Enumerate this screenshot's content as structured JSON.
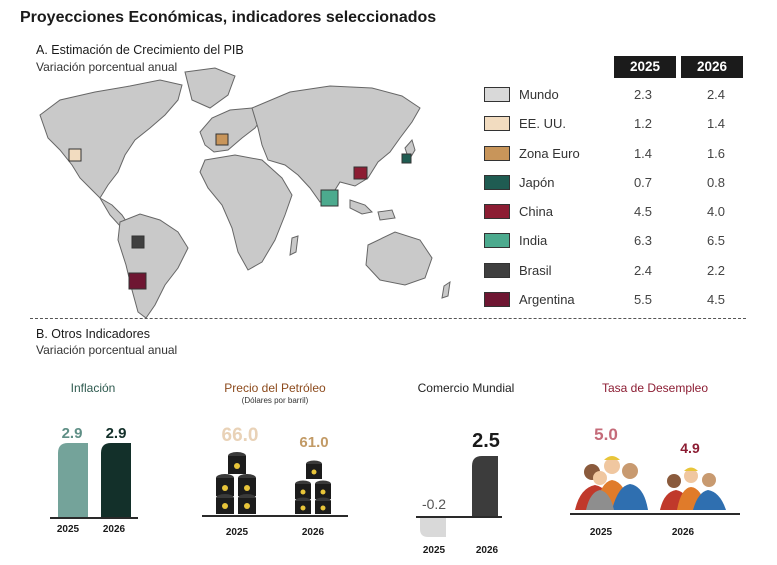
{
  "title": "Proyecciones Económicas, indicadores seleccionados",
  "section_a": {
    "title": "A. Estimación de Crecimiento del PIB",
    "subtitle": "Variación porcentual anual"
  },
  "section_b": {
    "title": "B. Otros Indicadores",
    "subtitle": "Variación porcentual anual"
  },
  "chart_data": [
    {
      "type": "table",
      "title": "A. Estimación de Crecimiento del PIB",
      "subtitle": "Variación porcentual anual",
      "columns": [
        "2025",
        "2026"
      ],
      "rows": [
        {
          "name": "Mundo",
          "color": "#d9d9d9",
          "values": [
            "2.3",
            "2.4"
          ]
        },
        {
          "name": "EE. UU.",
          "color": "#f2dcc0",
          "values": [
            "1.2",
            "1.4"
          ]
        },
        {
          "name": "Zona Euro",
          "color": "#c8955a",
          "values": [
            "1.4",
            "1.6"
          ]
        },
        {
          "name": "Japón",
          "color": "#1f5c52",
          "values": [
            "0.7",
            "0.8"
          ]
        },
        {
          "name": "China",
          "color": "#8c1d33",
          "values": [
            "4.5",
            "4.0"
          ]
        },
        {
          "name": "India",
          "color": "#4caa8e",
          "values": [
            "6.3",
            "6.5"
          ]
        },
        {
          "name": "Brasil",
          "color": "#3f3f3f",
          "values": [
            "2.4",
            "2.2"
          ]
        },
        {
          "name": "Argentina",
          "color": "#6e1632",
          "values": [
            "5.5",
            "4.5"
          ]
        }
      ]
    },
    {
      "type": "bar",
      "title": "Inflación",
      "color": "#2e5a4f",
      "categories": [
        "2025",
        "2026"
      ],
      "values": [
        2.9,
        2.9
      ],
      "labels": [
        "2.9",
        "2.9"
      ],
      "bar_colors": [
        "#74a39a",
        "#13302a"
      ]
    },
    {
      "type": "bar",
      "title": "Precio del Petróleo",
      "subtitle": "(Dólares por barril)",
      "color": "#8c4a1c",
      "categories": [
        "2025",
        "2026"
      ],
      "values": [
        66.0,
        61.0
      ],
      "labels": [
        "66.0",
        "61.0"
      ],
      "label_colors": [
        "#e9d2b7",
        "#c29a65"
      ]
    },
    {
      "type": "bar",
      "title": "Comercio Mundial",
      "color": "#222222",
      "categories": [
        "2025",
        "2026"
      ],
      "values": [
        -0.2,
        2.5
      ],
      "labels": [
        "-0.2",
        "2.5"
      ],
      "bar_colors": [
        "#d9d9d9",
        "#3c3c3c"
      ]
    },
    {
      "type": "bar",
      "title": "Tasa de Desempleo",
      "color": "#8c1d33",
      "categories": [
        "2025",
        "2026"
      ],
      "values": [
        5.0,
        4.9
      ],
      "labels": [
        "5.0",
        "4.9"
      ],
      "label_colors": [
        "#c56b79",
        "#8c1d33"
      ]
    }
  ]
}
